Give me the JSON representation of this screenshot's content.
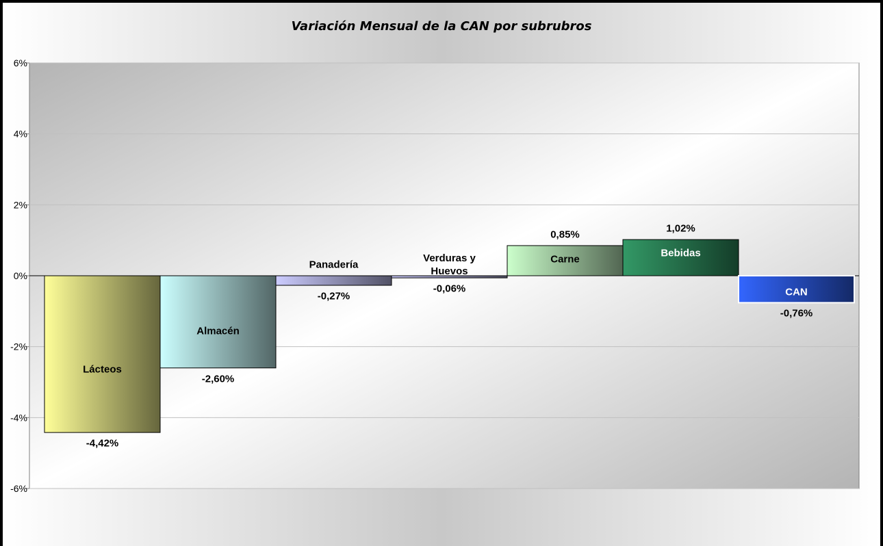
{
  "chart_data": {
    "type": "bar",
    "title": "Variación Mensual de la CAN por subrubros",
    "categories": [
      "Lácteos",
      "Almacén",
      "Panadería",
      "Verduras y Huevos",
      "Carne",
      "Bebidas",
      "CAN"
    ],
    "values": [
      -4.42,
      -2.6,
      -0.27,
      -0.06,
      0.85,
      1.02,
      -0.76
    ],
    "value_labels": [
      "-4,42%",
      "-2,60%",
      "-0,27%",
      "-0,06%",
      "0,85%",
      "1,02%",
      "-0,76%"
    ],
    "colors": [
      "#ffff99",
      "#ccffff",
      "#ccccff",
      "#ccccff",
      "#ccffcc",
      "#339966",
      "#3366ff"
    ],
    "ylim": [
      -6,
      6
    ],
    "yticks": [
      {
        "value": -6,
        "label": "-6%"
      },
      {
        "value": -4,
        "label": "-4%"
      },
      {
        "value": -2,
        "label": "-2%"
      },
      {
        "value": 0,
        "label": "0%"
      },
      {
        "value": 2,
        "label": "2%"
      },
      {
        "value": 4,
        "label": "4%"
      },
      {
        "value": 6,
        "label": "6%"
      }
    ],
    "grid": true
  }
}
